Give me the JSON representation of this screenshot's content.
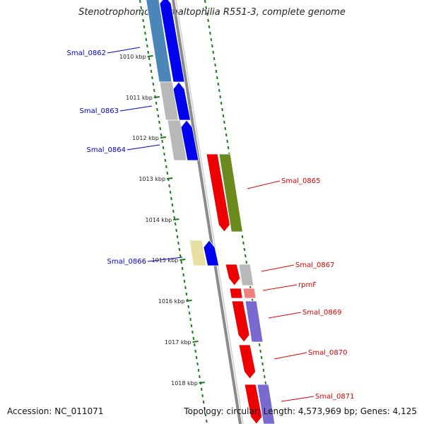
{
  "title": "Stenotrophomonas maltophilia R551-3, complete genome",
  "footer": {
    "accession": "Accession: NC_011071",
    "topology": "Topology: circular; Length: 4,573,969 bp; Genes: 4,125"
  },
  "colors": {
    "forward_label": "#0000cc",
    "reverse_label": "#dd0000",
    "tick": "#1a7a1a",
    "backbone": "#8a8a8a"
  },
  "ticks": [
    {
      "label": "1010 kbp"
    },
    {
      "label": "1011 kbp"
    },
    {
      "label": "1012 kbp"
    },
    {
      "label": "1013 kbp"
    },
    {
      "label": "1014 kbp"
    },
    {
      "label": "1015 kbp"
    },
    {
      "label": "1016 kbp"
    },
    {
      "label": "1017 kbp"
    },
    {
      "label": "1018 kbp"
    }
  ],
  "genes_forward": [
    {
      "label": "Smal_0862",
      "cds_color": "#0000ee",
      "feature_color": "#4a86b8"
    },
    {
      "label": "Smal_0863",
      "cds_color": "#0000ee",
      "feature_color": "#b8b8b8"
    },
    {
      "label": "Smal_0864",
      "cds_color": "#0000ee",
      "feature_color": "#b8b8b8"
    },
    {
      "label": "Smal_0866",
      "cds_color": "#0000ee",
      "feature_color": "#e8e0a0"
    }
  ],
  "genes_reverse": [
    {
      "label": "Smal_0865",
      "cds_color": "#ee0000",
      "feature_color": "#6a8a1e"
    },
    {
      "label": "Smal_0867",
      "cds_color": "#ee0000",
      "feature_color": "#b8b8b8"
    },
    {
      "label": "rpmF",
      "cds_color": "#ee0000",
      "feature_color": "#f08080"
    },
    {
      "label": "Smal_0869",
      "cds_color": "#ee0000",
      "feature_color": "#7a6ad0"
    },
    {
      "label": "Smal_0870",
      "cds_color": "#ee0000",
      "feature_color": ""
    },
    {
      "label": "Smal_0871",
      "cds_color": "#ee0000",
      "feature_color": "#7a6ad0"
    }
  ]
}
